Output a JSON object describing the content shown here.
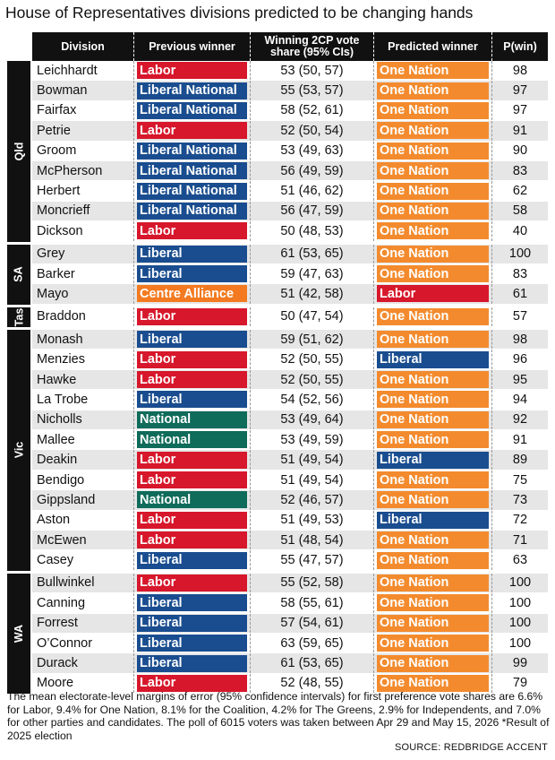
{
  "title": "House of Representatives divisions predicted to be changing hands",
  "headers": {
    "division": "Division",
    "previous": "Previous winner",
    "vote": "Winning 2CP vote share (95% CIs)",
    "predicted": "Predicted winner",
    "pwin": "P(win)"
  },
  "party_colors": {
    "Labor": "#d7172b",
    "Liberal National": "#1a4d8f",
    "Liberal": "#1a4d8f",
    "National": "#0f6b5a",
    "Centre Alliance": "#f37a20",
    "One Nation": "#f38b2e"
  },
  "groups": [
    {
      "state": "Qld",
      "rows": [
        {
          "division": "Leichhardt",
          "previous": "Labor",
          "vote": "53 (50, 57)",
          "predicted": "One Nation",
          "pwin": "98"
        },
        {
          "division": "Bowman",
          "previous": "Liberal National",
          "vote": "55 (53, 57)",
          "predicted": "One Nation",
          "pwin": "97"
        },
        {
          "division": "Fairfax",
          "previous": "Liberal National",
          "vote": "58 (52, 61)",
          "predicted": "One Nation",
          "pwin": "97"
        },
        {
          "division": "Petrie",
          "previous": "Labor",
          "vote": "52 (50, 54)",
          "predicted": "One Nation",
          "pwin": "91"
        },
        {
          "division": "Groom",
          "previous": "Liberal National",
          "vote": "53 (49, 63)",
          "predicted": "One Nation",
          "pwin": "90"
        },
        {
          "division": "McPherson",
          "previous": "Liberal National",
          "vote": "56 (49, 59)",
          "predicted": "One Nation",
          "pwin": "83"
        },
        {
          "division": "Herbert",
          "previous": "Liberal National",
          "vote": "51 (46, 62)",
          "predicted": "One Nation",
          "pwin": "62"
        },
        {
          "division": "Moncrieff",
          "previous": "Liberal National",
          "vote": "56 (47, 59)",
          "predicted": "One Nation",
          "pwin": "58"
        },
        {
          "division": "Dickson",
          "previous": "Labor",
          "vote": "50 (48, 53)",
          "predicted": "One Nation",
          "pwin": "40"
        }
      ]
    },
    {
      "state": "SA",
      "rows": [
        {
          "division": "Grey",
          "previous": "Liberal",
          "vote": "61 (53, 65)",
          "predicted": "One Nation",
          "pwin": "100"
        },
        {
          "division": "Barker",
          "previous": "Liberal",
          "vote": "59 (47, 63)",
          "predicted": "One Nation",
          "pwin": "83"
        },
        {
          "division": "Mayo",
          "previous": "Centre Alliance",
          "vote": "51 (42, 58)",
          "predicted": "Labor",
          "pwin": "61"
        }
      ]
    },
    {
      "state": "Tas",
      "rows": [
        {
          "division": "Braddon",
          "previous": "Labor",
          "vote": "50 (47, 54)",
          "predicted": "One Nation",
          "pwin": "57"
        }
      ]
    },
    {
      "state": "Vic",
      "rows": [
        {
          "division": "Monash",
          "previous": "Liberal",
          "vote": "59 (51, 62)",
          "predicted": "One Nation",
          "pwin": "98"
        },
        {
          "division": "Menzies",
          "previous": "Labor",
          "vote": "52 (50, 55)",
          "predicted": "Liberal",
          "pwin": "96"
        },
        {
          "division": "Hawke",
          "previous": "Labor",
          "vote": "52 (50, 55)",
          "predicted": "One Nation",
          "pwin": "95"
        },
        {
          "division": "La Trobe",
          "previous": "Liberal",
          "vote": "54 (52, 56)",
          "predicted": "One Nation",
          "pwin": "94"
        },
        {
          "division": "Nicholls",
          "previous": "National",
          "vote": "53 (49, 64)",
          "predicted": "One Nation",
          "pwin": "92"
        },
        {
          "division": "Mallee",
          "previous": "National",
          "vote": "53 (49, 59)",
          "predicted": "One Nation",
          "pwin": "91"
        },
        {
          "division": "Deakin",
          "previous": "Labor",
          "vote": "51 (49, 54)",
          "predicted": "Liberal",
          "pwin": "89"
        },
        {
          "division": "Bendigo",
          "previous": "Labor",
          "vote": "51 (49, 54)",
          "predicted": "One Nation",
          "pwin": "75"
        },
        {
          "division": "Gippsland",
          "previous": "National",
          "vote": "52 (46, 57)",
          "predicted": "One Nation",
          "pwin": "73"
        },
        {
          "division": "Aston",
          "previous": "Labor",
          "vote": "51 (49, 53)",
          "predicted": "Liberal",
          "pwin": "72"
        },
        {
          "division": "McEwen",
          "previous": "Labor",
          "vote": "51 (48, 54)",
          "predicted": "One Nation",
          "pwin": "71"
        },
        {
          "division": "Casey",
          "previous": "Liberal",
          "vote": "55 (47, 57)",
          "predicted": "One Nation",
          "pwin": "63"
        }
      ]
    },
    {
      "state": "WA",
      "rows": [
        {
          "division": "Bullwinkel",
          "previous": "Labor",
          "vote": "55 (52, 58)",
          "predicted": "One Nation",
          "pwin": "100"
        },
        {
          "division": "Canning",
          "previous": "Liberal",
          "vote": "58 (55, 61)",
          "predicted": "One Nation",
          "pwin": "100"
        },
        {
          "division": "Forrest",
          "previous": "Liberal",
          "vote": "57 (54, 61)",
          "predicted": "One Nation",
          "pwin": "100"
        },
        {
          "division": "O’Connor",
          "previous": "Liberal",
          "vote": "63 (59, 65)",
          "predicted": "One Nation",
          "pwin": "100"
        },
        {
          "division": "Durack",
          "previous": "Liberal",
          "vote": "61 (53, 65)",
          "predicted": "One Nation",
          "pwin": "99"
        },
        {
          "division": "Moore",
          "previous": "Labor",
          "vote": "52 (48, 55)",
          "predicted": "One Nation",
          "pwin": "79"
        }
      ]
    }
  ],
  "footnote": "The mean electorate-level margins of error (95% confidence intervals) for first preference vote shares are 6.6% for Labor, 9.4% for One Nation, 8.1% for the Coalition, 4.2% for The Greens, 2.9% for Independents, and 7.0% for other parties and candidates. The poll of 6015 voters was taken between Apr 29 and May 15, 2026    *Result of 2025 election",
  "source": "SOURCE: REDBRIDGE ACCENT"
}
